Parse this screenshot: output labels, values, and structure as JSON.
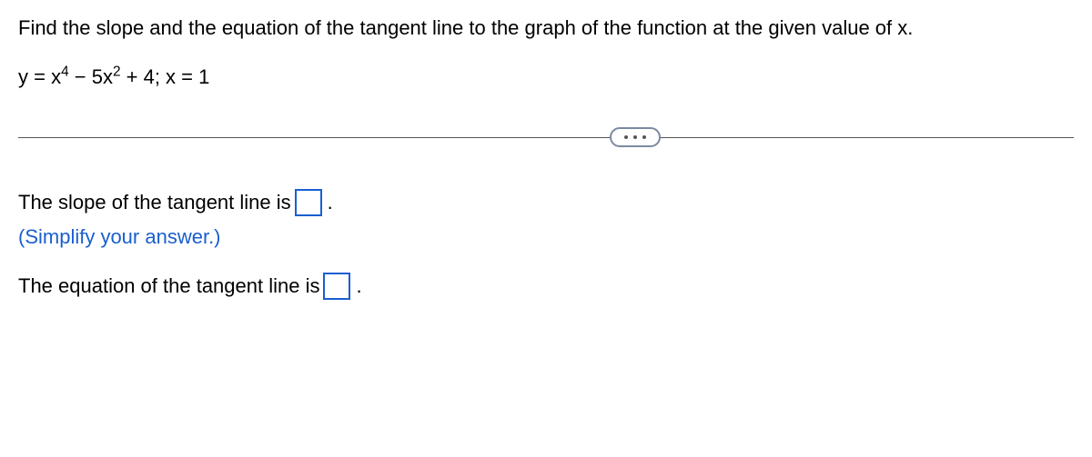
{
  "prompt": "Find the slope and the equation of the tangent line to the graph of the function at the given value of x.",
  "equation": {
    "pre": "y = x",
    "sup1": "4",
    "mid1": " − 5x",
    "sup2": "2",
    "post": " + 4; x = 1"
  },
  "line1_a": "The slope of the tangent line is ",
  "hint": "(Simplify your answer.)",
  "line2_a": "The equation of the tangent line is ",
  "period": "."
}
